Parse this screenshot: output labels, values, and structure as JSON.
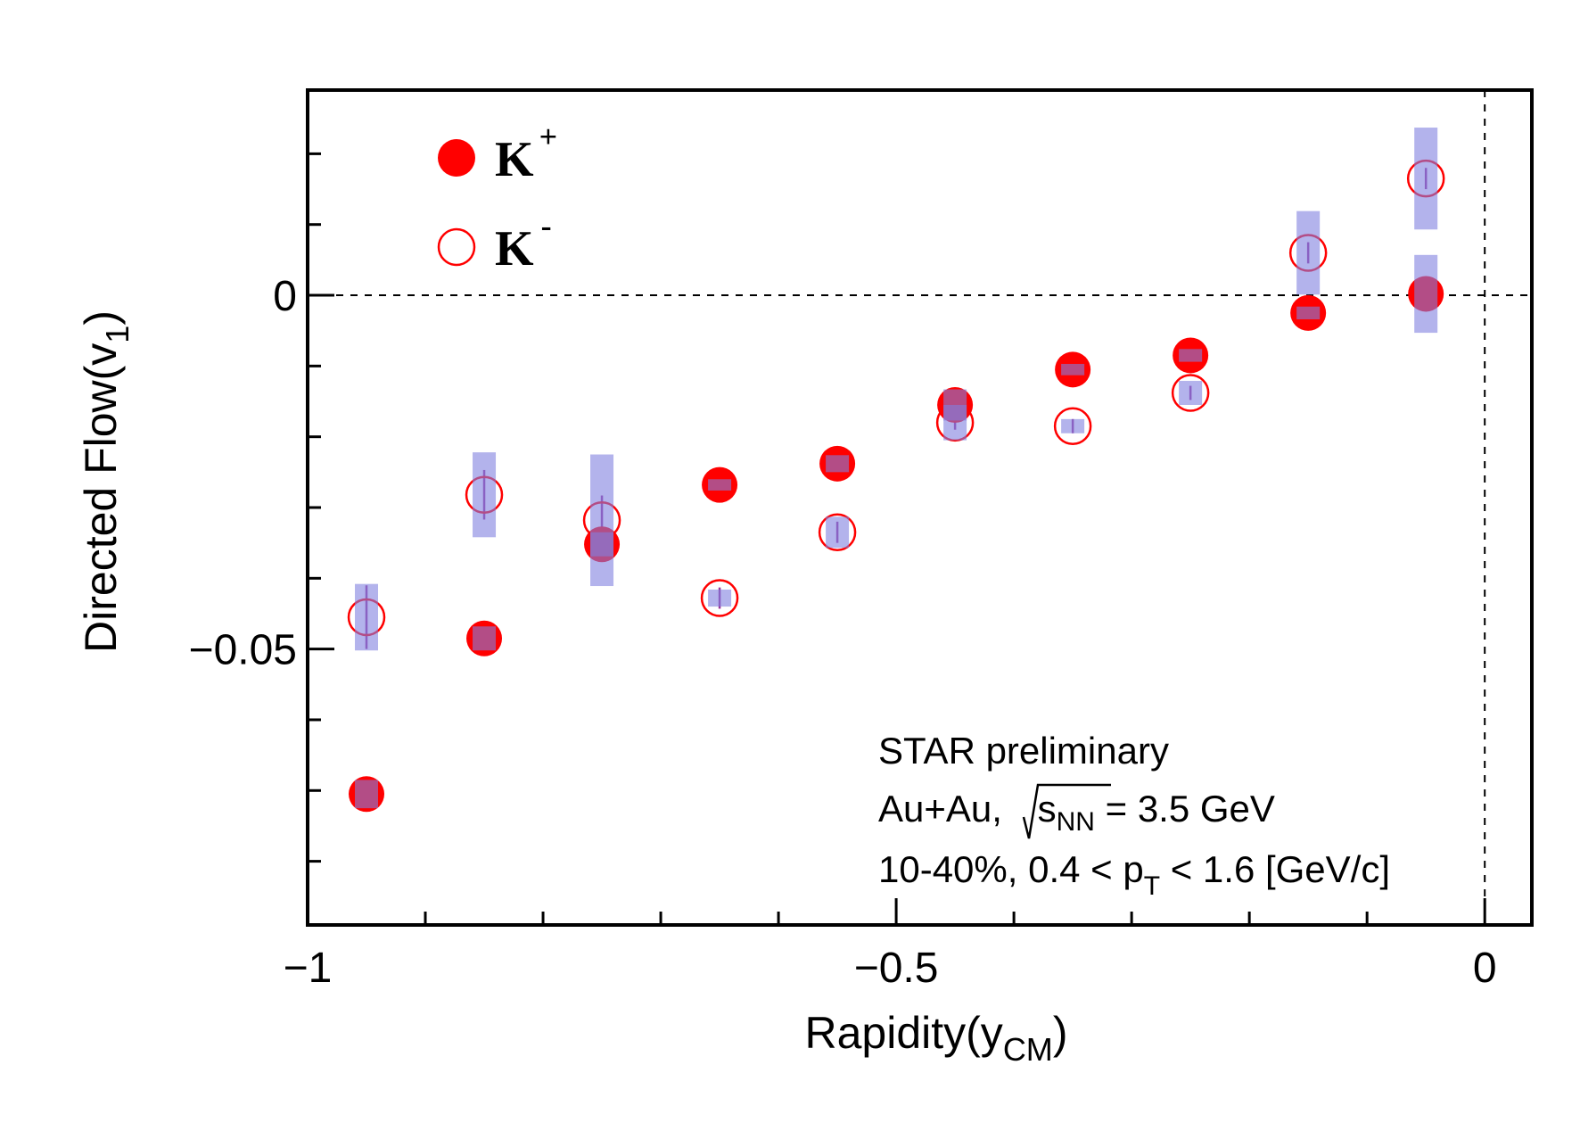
{
  "chart_data": {
    "type": "scatter",
    "xlabel": "Rapidity(y",
    "xlabel_sub": "CM",
    "xlabel_close": ")",
    "ylabel": "Directed Flow(v",
    "ylabel_sub": "1",
    "ylabel_close": ")",
    "xlim": [
      -1.0,
      0.04
    ],
    "ylim": [
      -0.089,
      0.029
    ],
    "x_ticks": [
      -1,
      -0.5,
      0
    ],
    "x_tick_labels": [
      "−1",
      "−0.5",
      "0"
    ],
    "y_ticks": [
      -0.05,
      0
    ],
    "y_tick_labels": [
      "−0.05",
      "0"
    ],
    "grid": false,
    "reference_lines": {
      "y": 0,
      "x": 0,
      "style": "dashed"
    },
    "legend_position": "top-left",
    "series": [
      {
        "name": "K",
        "superscript": "+",
        "marker": "filled-circle",
        "color": "#ff0000",
        "x": [
          -0.95,
          -0.85,
          -0.75,
          -0.65,
          -0.55,
          -0.45,
          -0.35,
          -0.25,
          -0.15,
          -0.05
        ],
        "y": [
          -0.0705,
          -0.0485,
          -0.0352,
          -0.0268,
          -0.0238,
          -0.0155,
          -0.0105,
          -0.0085,
          -0.0025,
          0.0002
        ],
        "err": [
          0.001,
          0.001,
          0.001,
          0.001,
          0.001,
          0.001,
          0.001,
          0.001,
          0.001,
          0.001
        ],
        "sys": [
          0.002,
          0.0017,
          0.0017,
          0.0008,
          0.0012,
          0.0022,
          0.0008,
          0.0009,
          0.0009,
          0.0055
        ]
      },
      {
        "name": "K",
        "superscript": "-",
        "marker": "open-circle",
        "color": "#ff0000",
        "x": [
          -0.95,
          -0.85,
          -0.75,
          -0.65,
          -0.55,
          -0.45,
          -0.35,
          -0.25,
          -0.15,
          -0.05
        ],
        "y": [
          -0.0455,
          -0.0282,
          -0.0318,
          -0.0428,
          -0.0335,
          -0.018,
          -0.0185,
          -0.0138,
          0.006,
          0.0165
        ],
        "err": [
          0.0045,
          0.0035,
          0.0035,
          0.0015,
          0.0015,
          0.001,
          0.001,
          0.001,
          0.0015,
          0.0015
        ],
        "sys": [
          0.0047,
          0.006,
          0.0093,
          0.0012,
          0.0022,
          0.0025,
          0.001,
          0.0017,
          0.0059,
          0.0072
        ]
      }
    ],
    "sys_color": "#aaaaee",
    "annotations": {
      "line1": "STAR preliminary",
      "line2_pre": "Au+Au, ",
      "line2_s": "s",
      "line2_sub": "NN",
      "line2_post": " = 3.5 GeV",
      "line3_pre": "10-40%, 0.4 < p",
      "line3_sub": "T",
      "line3_post": " < 1.6 [GeV/c]"
    }
  }
}
